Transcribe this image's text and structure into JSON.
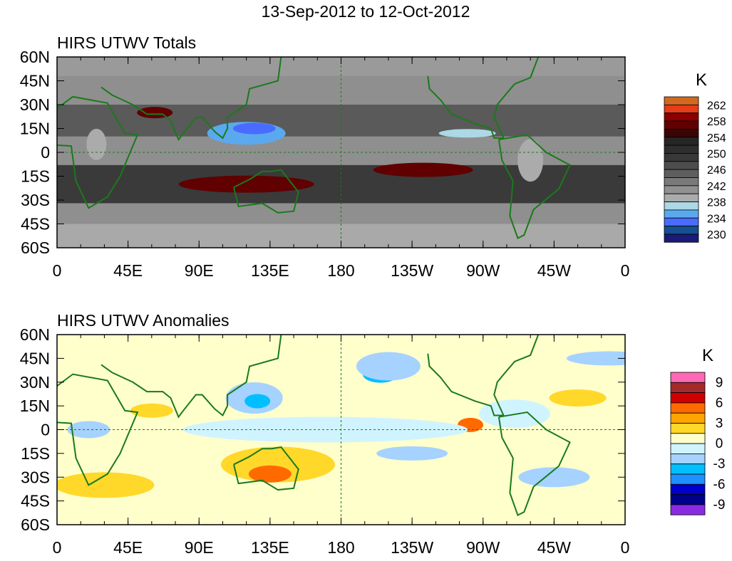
{
  "title": "13-Sep-2012 to 12-Oct-2012",
  "chart_data": [
    {
      "type": "heatmap",
      "title": "HIRS UTWV Totals",
      "units": "K",
      "x_ticks": [
        "0",
        "45E",
        "90E",
        "135E",
        "180",
        "135W",
        "90W",
        "45W",
        "0"
      ],
      "y_ticks": [
        "60N",
        "45N",
        "30N",
        "15N",
        "0",
        "15S",
        "30S",
        "45S",
        "60S"
      ],
      "xlim": [
        0,
        360
      ],
      "ylim": [
        -60,
        60
      ],
      "colorbar": {
        "colors": [
          "#d2691e",
          "#e63c1a",
          "#8b0000",
          "#600000",
          "#3a0505",
          "#262626",
          "#2e2e2e",
          "#383838",
          "#4d4d4d",
          "#5e5e5e",
          "#7a7a7a",
          "#919191",
          "#ababab",
          "#add8e6",
          "#5aa9ee",
          "#4a6bff",
          "#15508f",
          "#1a1a78"
        ],
        "labels": [
          "262",
          "258",
          "254",
          "250",
          "246",
          "242",
          "238",
          "234",
          "230"
        ]
      },
      "features": [
        {
          "lon": 125,
          "lat": -20,
          "value": 257
        },
        {
          "lon": 232,
          "lat": -12,
          "value": 256
        },
        {
          "lon": 62,
          "lat": 25,
          "value": 257
        },
        {
          "lon": 120,
          "lat": 15,
          "value": 234
        },
        {
          "lon": 300,
          "lat": -10,
          "value": 238
        }
      ]
    },
    {
      "type": "heatmap",
      "title": "HIRS UTWV Anomalies",
      "units": "K",
      "x_ticks": [
        "0",
        "45E",
        "90E",
        "135E",
        "180",
        "135W",
        "90W",
        "45W",
        "0"
      ],
      "y_ticks": [
        "60N",
        "45N",
        "30N",
        "15N",
        "0",
        "15S",
        "30S",
        "45S",
        "60S"
      ],
      "xlim": [
        0,
        360
      ],
      "ylim": [
        -60,
        60
      ],
      "colorbar": {
        "colors": [
          "#ff69b4",
          "#a52a2a",
          "#d00000",
          "#ff6a00",
          "#ffa500",
          "#ffd82a",
          "#ffffcc",
          "#d0f4ff",
          "#a6d2ff",
          "#00bfff",
          "#1e90ff",
          "#0000cd",
          "#00008b",
          "#8a2be2"
        ],
        "labels": [
          "9",
          "6",
          "3",
          "0",
          "-3",
          "-6",
          "-9"
        ]
      },
      "features": [
        {
          "lon": 135,
          "lat": -25,
          "value": 6
        },
        {
          "lon": 262,
          "lat": 2,
          "value": 6
        },
        {
          "lon": 128,
          "lat": 18,
          "value": -5
        },
        {
          "lon": 205,
          "lat": 35,
          "value": -4
        },
        {
          "lon": 30,
          "lat": -30,
          "value": 3
        }
      ]
    }
  ]
}
